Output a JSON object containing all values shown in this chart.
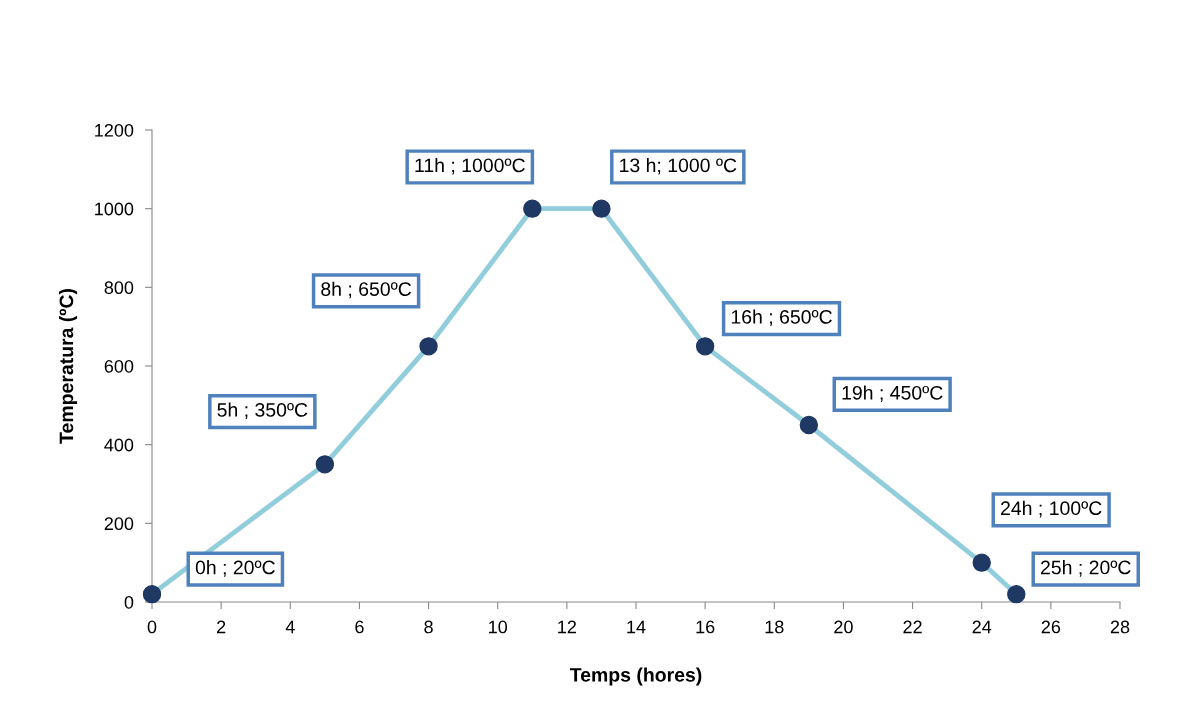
{
  "chart_data": {
    "type": "line",
    "xlabel": "Temps (hores)",
    "ylabel": "Temperatura (ºC)",
    "x": [
      0,
      5,
      8,
      11,
      13,
      16,
      19,
      24,
      25
    ],
    "series": [
      {
        "color": "#92cddc",
        "colors": [
          "#1f3864",
          "#1f3864",
          "#1f3864",
          "#1f3864",
          "#1f3864",
          "#1f3864",
          "#1f3864",
          "#1f3864",
          "#1f3864"
        ],
        "values": [
          20,
          350,
          650,
          1000,
          1000,
          650,
          450,
          100,
          20
        ],
        "value_labels": [
          "0h ; 20ºC",
          "5h ; 350ºC",
          "8h ; 650ºC",
          "11h ; 1000ºC",
          "13 h; 1000 ºC",
          "16h ; 650ºC",
          "19h ; 450ºC",
          "24h ; 100ºC",
          "25h ; 20ºC"
        ]
      }
    ],
    "marker": "circle",
    "line_style": "solid",
    "grid": false,
    "legend": false,
    "xlim": [
      0,
      28
    ],
    "xticks": [
      0,
      2,
      4,
      6,
      8,
      10,
      12,
      14,
      16,
      18,
      20,
      22,
      24,
      26,
      28
    ],
    "ylim": [
      0,
      1200
    ],
    "yticks": [
      0,
      200,
      400,
      600,
      800,
      1000,
      1200
    ]
  }
}
